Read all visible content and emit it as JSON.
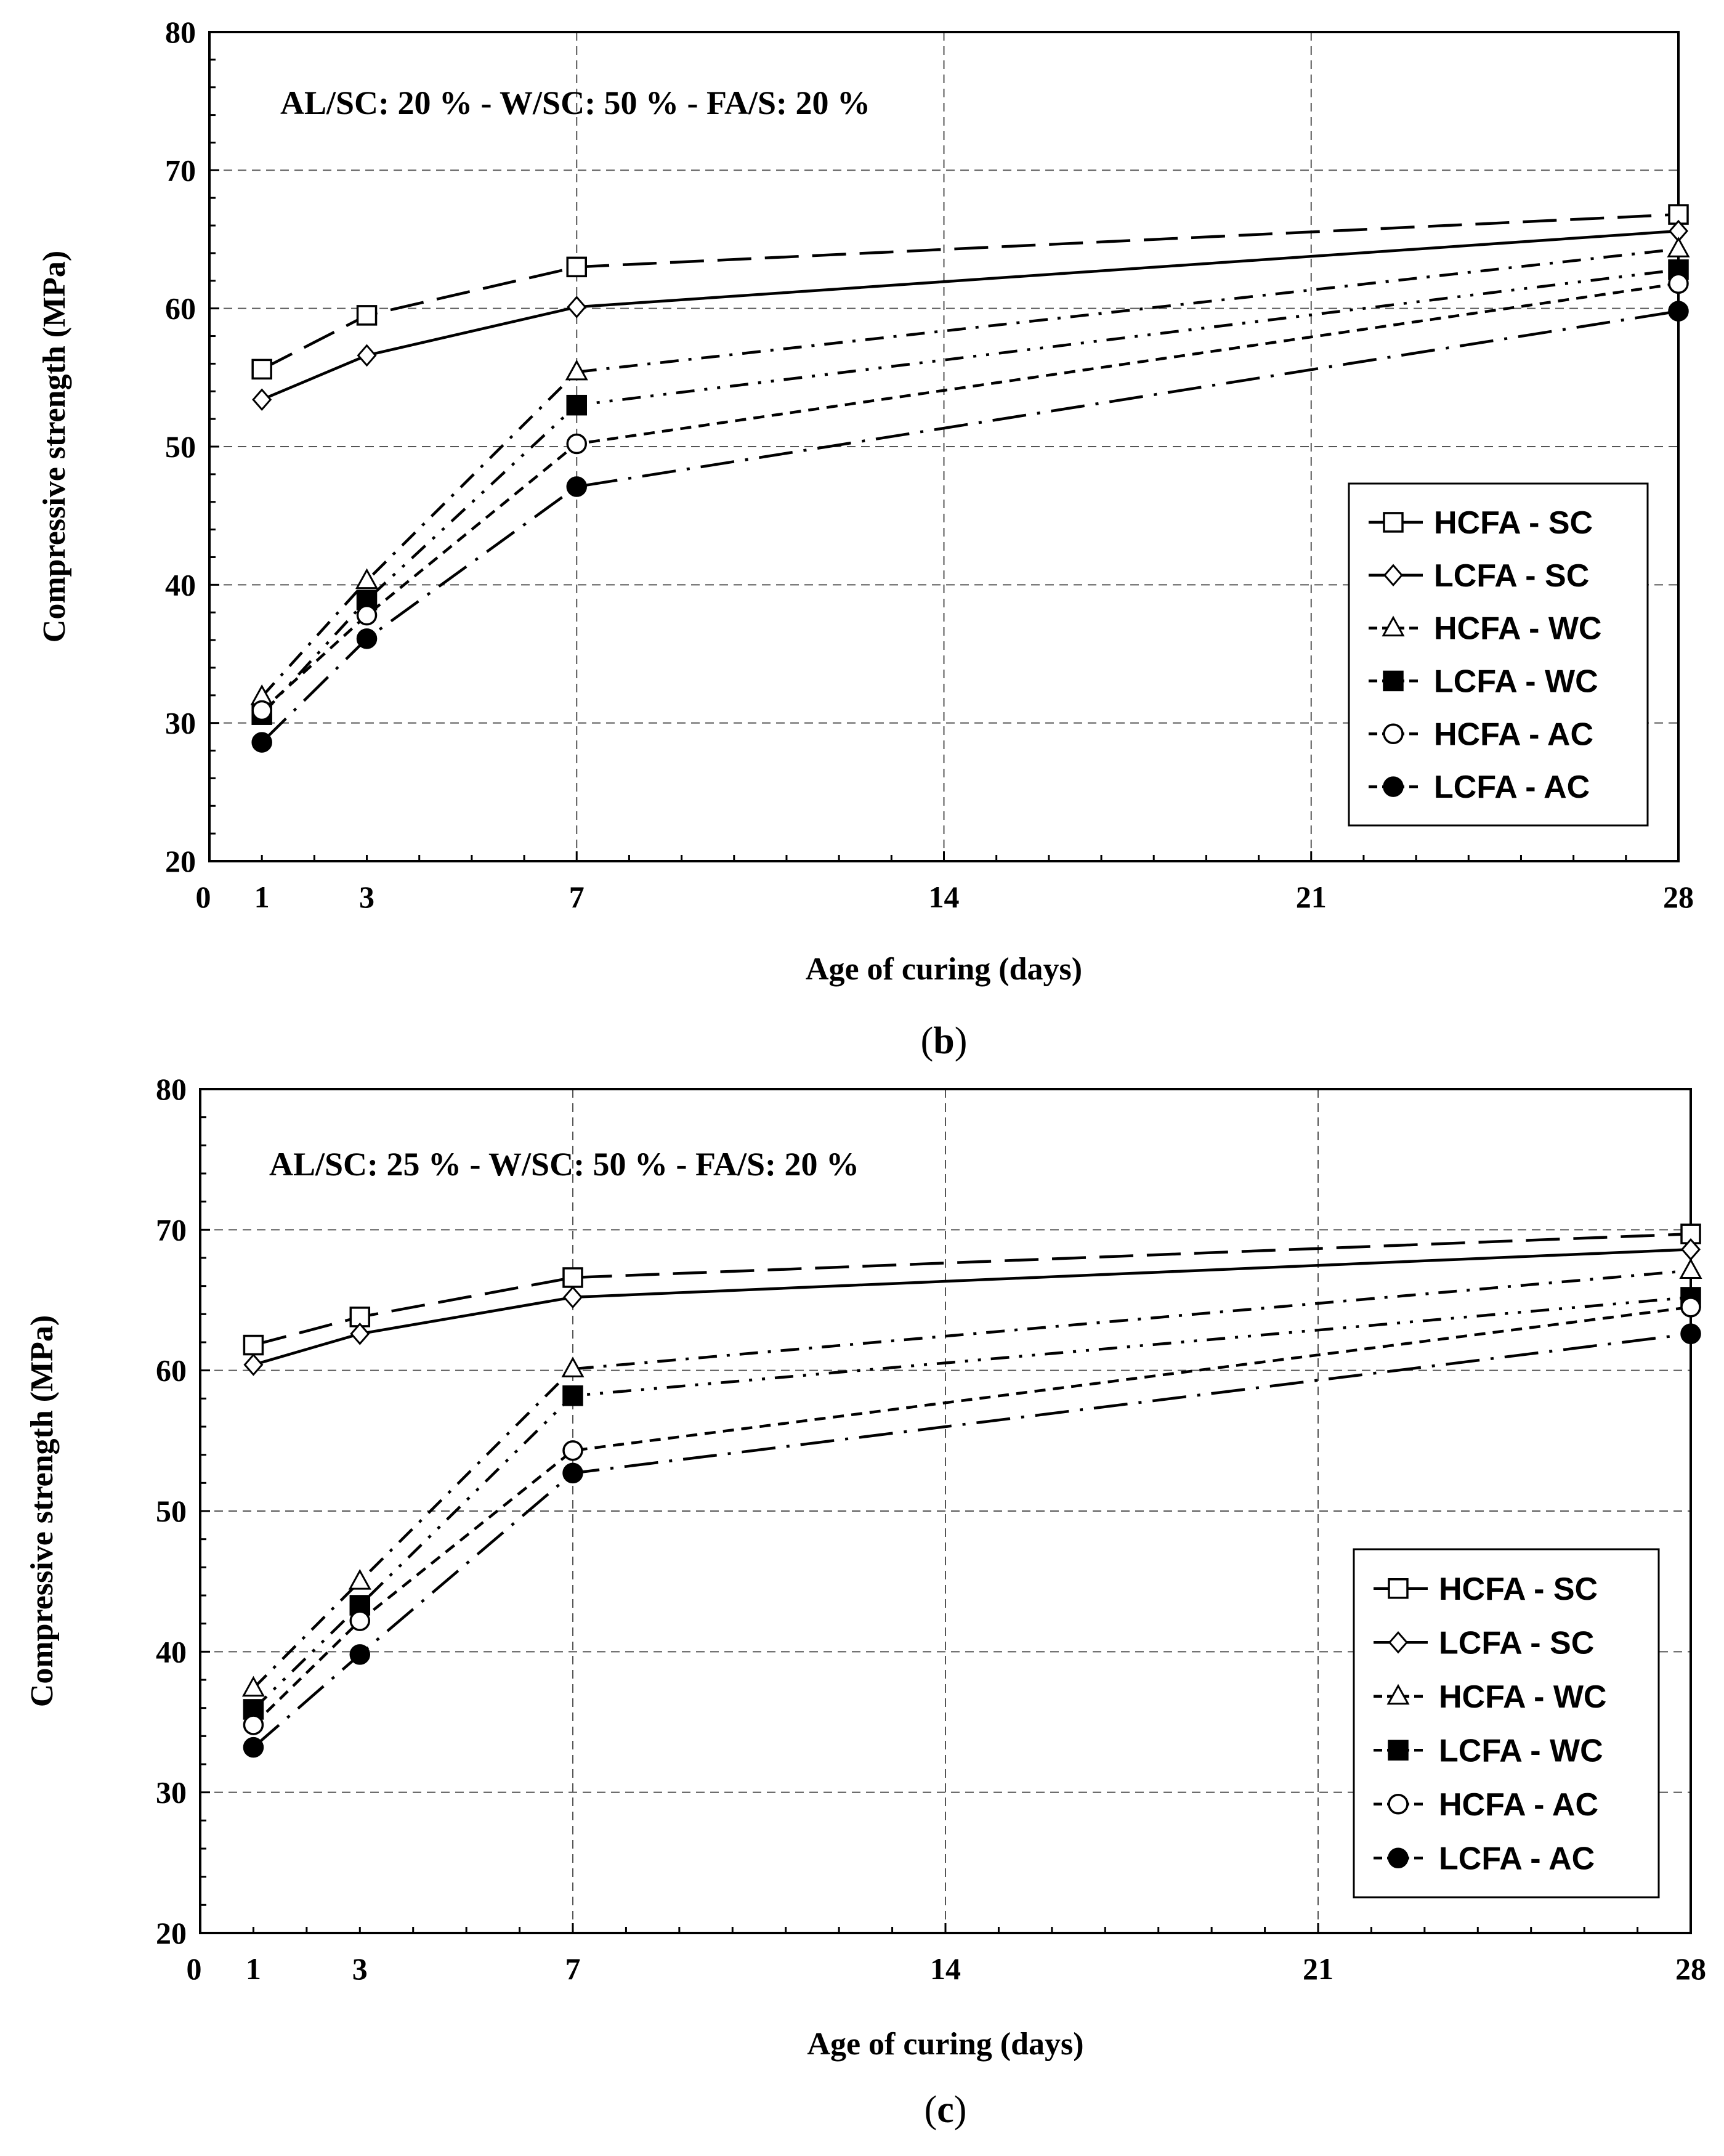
{
  "chart_data": [
    {
      "type": "line",
      "panel_label": "b",
      "annotation": "AL/SC: 20 % - W/SC: 50 % - FA/S: 20 %",
      "xlabel": "Age of curing (days)",
      "ylabel": "Compressive  strength (MPa)",
      "xlim": [
        0,
        28
      ],
      "ylim": [
        20,
        80
      ],
      "x_ticks": [
        0,
        1,
        3,
        7,
        14,
        21,
        28
      ],
      "y_ticks": [
        20,
        30,
        40,
        50,
        60,
        70,
        80
      ],
      "grid": true,
      "legend_position": "lower-right",
      "x": [
        1,
        3,
        7,
        28
      ],
      "series": [
        {
          "name": "HCFA - SC",
          "values": [
            55.6,
            59.5,
            63.0,
            66.8
          ]
        },
        {
          "name": "LCFA - SC",
          "values": [
            53.4,
            56.6,
            60.1,
            65.6
          ]
        },
        {
          "name": "HCFA - WC",
          "values": [
            31.9,
            40.3,
            55.4,
            64.3
          ]
        },
        {
          "name": "LCFA - WC",
          "values": [
            30.6,
            38.9,
            53.0,
            62.8
          ]
        },
        {
          "name": "HCFA - AC",
          "values": [
            30.9,
            37.8,
            50.2,
            61.8
          ]
        },
        {
          "name": "LCFA - AC",
          "values": [
            28.6,
            36.1,
            47.1,
            59.8
          ]
        }
      ]
    },
    {
      "type": "line",
      "panel_label": "c",
      "annotation": "AL/SC: 25 % - W/SC: 50 % - FA/S: 20 %",
      "xlabel": "Age of curing (days)",
      "ylabel": "Compressive  strength (MPa)",
      "xlim": [
        0,
        28
      ],
      "ylim": [
        20,
        80
      ],
      "x_ticks": [
        0,
        1,
        3,
        7,
        14,
        21,
        28
      ],
      "y_ticks": [
        20,
        30,
        40,
        50,
        60,
        70,
        80
      ],
      "grid": true,
      "legend_position": "lower-right",
      "x": [
        1,
        3,
        7,
        28
      ],
      "series": [
        {
          "name": "HCFA - SC",
          "values": [
            61.8,
            63.8,
            66.6,
            69.7
          ]
        },
        {
          "name": "LCFA - SC",
          "values": [
            60.4,
            62.6,
            65.2,
            68.6
          ]
        },
        {
          "name": "HCFA - WC",
          "values": [
            37.4,
            45.0,
            60.1,
            67.1
          ]
        },
        {
          "name": "LCFA - WC",
          "values": [
            35.9,
            43.3,
            58.2,
            65.2
          ]
        },
        {
          "name": "HCFA - AC",
          "values": [
            34.8,
            42.2,
            54.3,
            64.5
          ]
        },
        {
          "name": "LCFA - AC",
          "values": [
            33.2,
            39.8,
            52.7,
            62.6
          ]
        }
      ]
    }
  ],
  "styles": {
    "line_color": "#000000",
    "grid_color": "#555555",
    "marker_names": [
      "square-open",
      "diamond-open",
      "triangle-open",
      "square-filled",
      "circle-open",
      "circle-filled"
    ]
  }
}
